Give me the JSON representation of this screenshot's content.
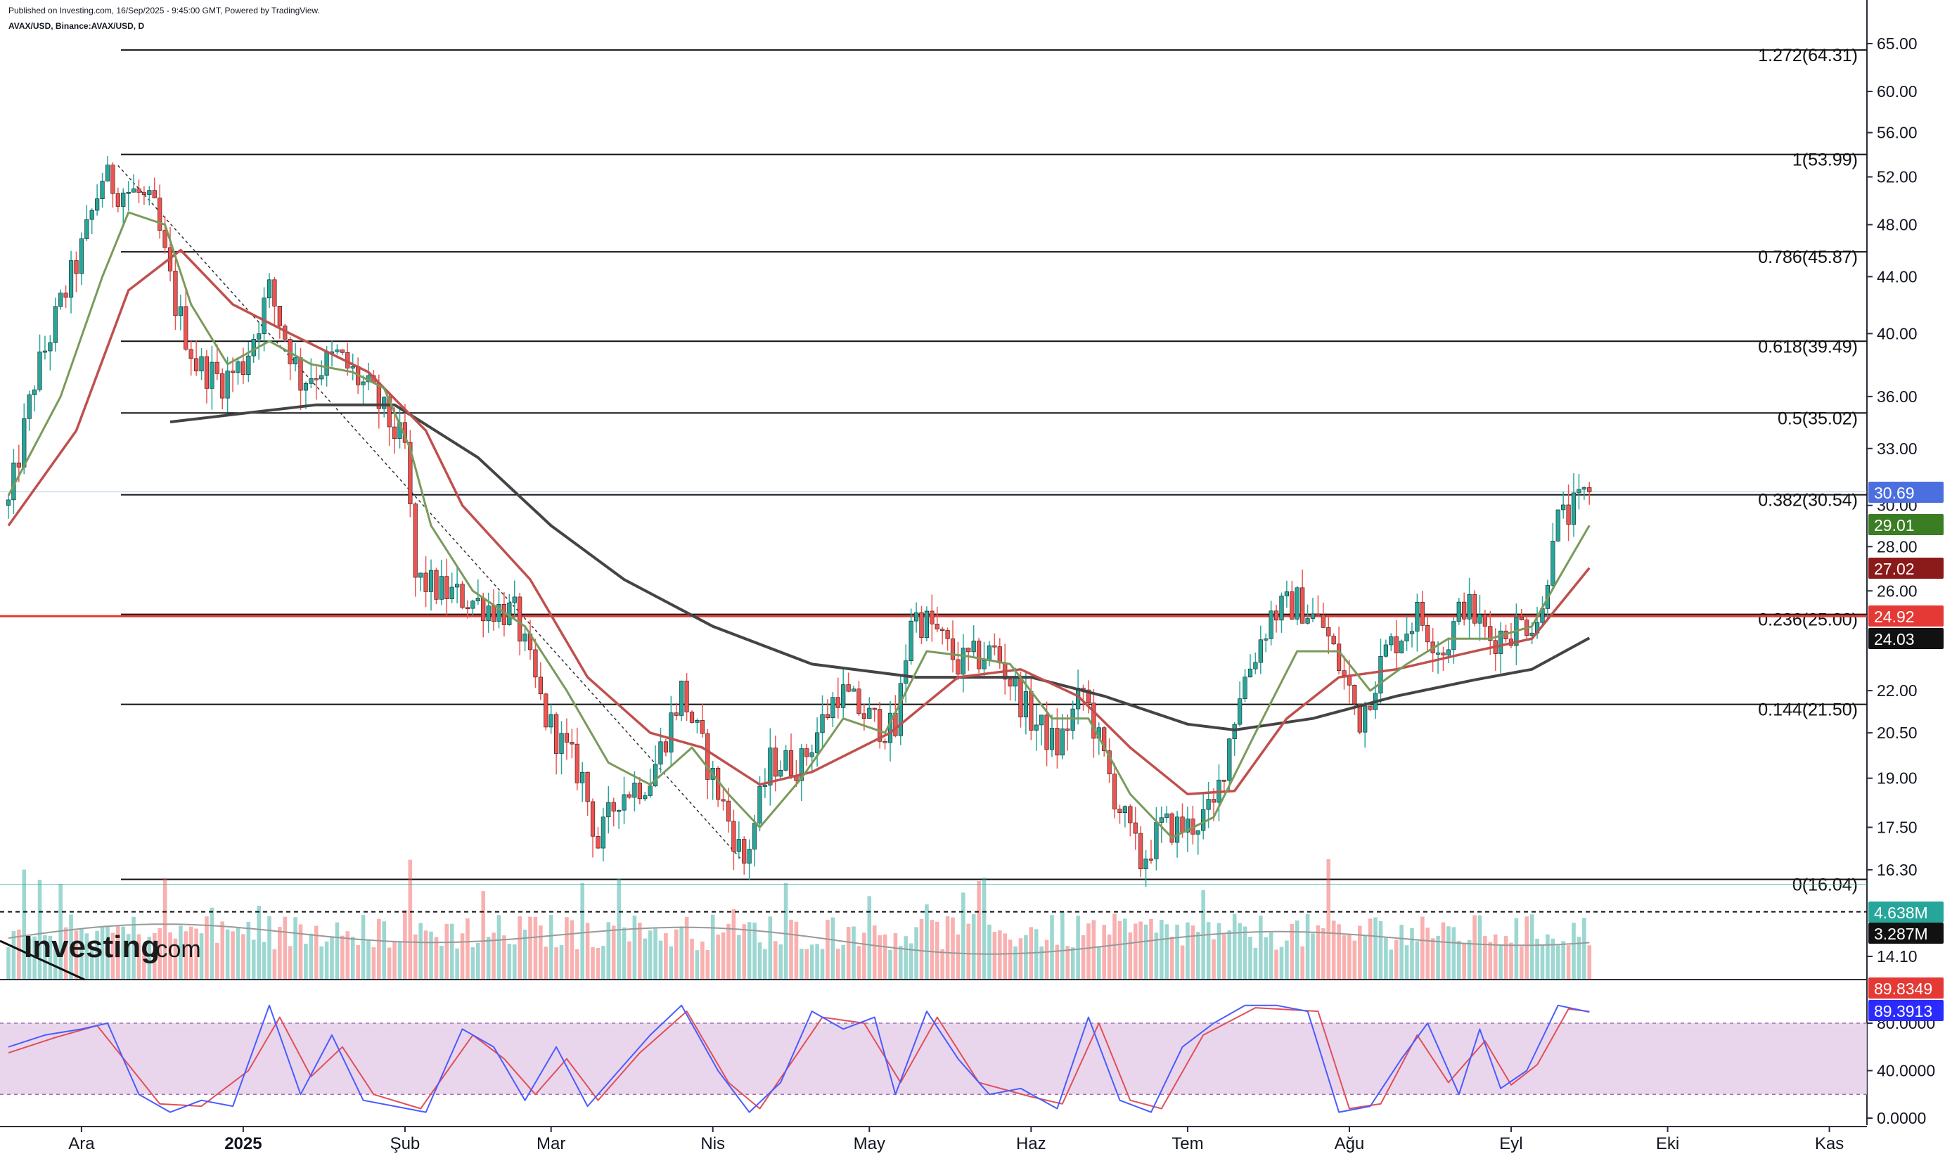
{
  "header": {
    "published": "Published on Investing.com, 16/Sep/2025 - 9:45:00 GMT, Powered by TradingView.",
    "symbol": "AVAX/USD, Binance:AVAX/USD, D"
  },
  "watermark": {
    "brand": "Investing",
    "suffix": ".com"
  },
  "colors": {
    "up": "#26a69a",
    "down": "#ef5350",
    "ma_fast": "#7a9a5c",
    "ma_mid": "#c0504d",
    "ma_slow": "#444444",
    "support": "#e53935",
    "stoch_k": "#4a5cff",
    "stoch_d": "#e0505a",
    "stoch_band": "#e1c8e6"
  },
  "chart_data": {
    "type": "candlestick",
    "price_scale": "log",
    "price_ticks": [
      "65.00",
      "60.00",
      "56.00",
      "52.00",
      "48.00",
      "44.00",
      "40.00",
      "36.00",
      "33.00",
      "30.00",
      "28.00",
      "26.00",
      "22.00",
      "20.50",
      "19.00",
      "17.50",
      "16.30",
      "14.10"
    ],
    "x_ticks": [
      "Ara",
      "2025",
      "Şub",
      "Mar",
      "Nis",
      "May",
      "Haz",
      "Tem",
      "Ağu",
      "Eyl",
      "Eki",
      "Kas"
    ],
    "fib_levels": [
      {
        "label": "1.272(64.31)",
        "value": 64.31
      },
      {
        "label": "1(53.99)",
        "value": 53.99
      },
      {
        "label": "0.786(45.87)",
        "value": 45.87
      },
      {
        "label": "0.618(39.49)",
        "value": 39.49
      },
      {
        "label": "0.5(35.02)",
        "value": 35.02
      },
      {
        "label": "0.382(30.54)",
        "value": 30.54
      },
      {
        "label": "0.236(25.00)",
        "value": 25.0
      },
      {
        "label": "0.144(21.50)",
        "value": 21.5
      },
      {
        "label": "0(16.04)",
        "value": 16.04
      }
    ],
    "support_level": 24.92,
    "price_tags": [
      {
        "label": "30.69",
        "value": 30.69,
        "color": "#4c6fe0"
      },
      {
        "label": "29.01",
        "value": 29.01,
        "color": "#3a7d22"
      },
      {
        "label": "27.02",
        "value": 27.02,
        "color": "#8b1a1a"
      },
      {
        "label": "24.92",
        "value": 24.92,
        "color": "#e53935"
      },
      {
        "label": "24.03",
        "value": 24.03,
        "color": "#111111"
      }
    ],
    "volume_tags": [
      {
        "label": "4.638M",
        "value": 4.638,
        "color": "#26a69a"
      },
      {
        "label": "3.287M",
        "value": 3.287,
        "color": "#111111"
      }
    ],
    "stoch_ticks": [
      "80.0000",
      "40.0000",
      "0.0000"
    ],
    "stoch_tags": [
      {
        "label": "89.8349",
        "value": 89.8349,
        "color": "#e53935"
      },
      {
        "label": "89.3913",
        "value": 89.3913,
        "color": "#2b2bff"
      }
    ],
    "stoch_band": [
      20,
      80
    ],
    "price_path": [
      {
        "date": "2024-11-17",
        "close": 30.0
      },
      {
        "date": "2024-11-22",
        "close": 37.0
      },
      {
        "date": "2024-11-27",
        "close": 42.0
      },
      {
        "date": "2024-12-01",
        "close": 46.0
      },
      {
        "date": "2024-12-05",
        "close": 52.0
      },
      {
        "date": "2024-12-08",
        "close": 51.0
      },
      {
        "date": "2024-12-12",
        "close": 50.5
      },
      {
        "date": "2024-12-15",
        "close": 49.0
      },
      {
        "date": "2024-12-19",
        "close": 42.0
      },
      {
        "date": "2024-12-23",
        "close": 38.0
      },
      {
        "date": "2024-12-28",
        "close": 37.0
      },
      {
        "date": "2025-01-01",
        "close": 38.0
      },
      {
        "date": "2025-01-06",
        "close": 43.0
      },
      {
        "date": "2025-01-12",
        "close": 37.0
      },
      {
        "date": "2025-01-19",
        "close": 38.5
      },
      {
        "date": "2025-01-26",
        "close": 36.0
      },
      {
        "date": "2025-02-01",
        "close": 33.0
      },
      {
        "date": "2025-02-03",
        "close": 26.5
      },
      {
        "date": "2025-02-08",
        "close": 26.0
      },
      {
        "date": "2025-02-15",
        "close": 25.5
      },
      {
        "date": "2025-02-22",
        "close": 25.0
      },
      {
        "date": "2025-02-28",
        "close": 21.0
      },
      {
        "date": "2025-03-07",
        "close": 19.0
      },
      {
        "date": "2025-03-10",
        "close": 17.0
      },
      {
        "date": "2025-03-14",
        "close": 18.5
      },
      {
        "date": "2025-03-20",
        "close": 19.0
      },
      {
        "date": "2025-03-26",
        "close": 22.0
      },
      {
        "date": "2025-04-01",
        "close": 19.0
      },
      {
        "date": "2025-04-07",
        "close": 16.5
      },
      {
        "date": "2025-04-12",
        "close": 19.5
      },
      {
        "date": "2025-04-18",
        "close": 19.5
      },
      {
        "date": "2025-04-25",
        "close": 22.0
      },
      {
        "date": "2025-05-01",
        "close": 21.0
      },
      {
        "date": "2025-05-06",
        "close": 20.5
      },
      {
        "date": "2025-05-09",
        "close": 25.0
      },
      {
        "date": "2025-05-13",
        "close": 24.5
      },
      {
        "date": "2025-05-18",
        "close": 23.0
      },
      {
        "date": "2025-05-25",
        "close": 23.5
      },
      {
        "date": "2025-06-01",
        "close": 21.0
      },
      {
        "date": "2025-06-06",
        "close": 20.0
      },
      {
        "date": "2025-06-11",
        "close": 22.0
      },
      {
        "date": "2025-06-17",
        "close": 18.5
      },
      {
        "date": "2025-06-22",
        "close": 16.5
      },
      {
        "date": "2025-06-26",
        "close": 17.5
      },
      {
        "date": "2025-07-01",
        "close": 17.5
      },
      {
        "date": "2025-07-06",
        "close": 18.0
      },
      {
        "date": "2025-07-11",
        "close": 22.0
      },
      {
        "date": "2025-07-17",
        "close": 25.0
      },
      {
        "date": "2025-07-22",
        "close": 25.5
      },
      {
        "date": "2025-07-27",
        "close": 24.5
      },
      {
        "date": "2025-08-01",
        "close": 22.0
      },
      {
        "date": "2025-08-03",
        "close": 21.0
      },
      {
        "date": "2025-08-08",
        "close": 23.5
      },
      {
        "date": "2025-08-14",
        "close": 25.0
      },
      {
        "date": "2025-08-19",
        "close": 23.5
      },
      {
        "date": "2025-08-23",
        "close": 25.5
      },
      {
        "date": "2025-08-28",
        "close": 24.0
      },
      {
        "date": "2025-09-02",
        "close": 24.5
      },
      {
        "date": "2025-09-07",
        "close": 25.0
      },
      {
        "date": "2025-09-09",
        "close": 29.0
      },
      {
        "date": "2025-09-12",
        "close": 29.5
      },
      {
        "date": "2025-09-16",
        "close": 30.69
      }
    ],
    "ma_fast_path": [
      {
        "date": "2024-11-17",
        "value": 30.5
      },
      {
        "date": "2024-11-27",
        "value": 36.0
      },
      {
        "date": "2024-12-05",
        "value": 44.0
      },
      {
        "date": "2024-12-10",
        "value": 49.0
      },
      {
        "date": "2024-12-17",
        "value": 48.0
      },
      {
        "date": "2024-12-22",
        "value": 42.0
      },
      {
        "date": "2024-12-29",
        "value": 38.0
      },
      {
        "date": "2025-01-06",
        "value": 39.5
      },
      {
        "date": "2025-01-14",
        "value": 38.0
      },
      {
        "date": "2025-01-22",
        "value": 37.5
      },
      {
        "date": "2025-01-28",
        "value": 36.5
      },
      {
        "date": "2025-02-02",
        "value": 33.0
      },
      {
        "date": "2025-02-06",
        "value": 29.0
      },
      {
        "date": "2025-02-14",
        "value": 26.0
      },
      {
        "date": "2025-02-24",
        "value": 24.5
      },
      {
        "date": "2025-03-04",
        "value": 22.0
      },
      {
        "date": "2025-03-12",
        "value": 19.5
      },
      {
        "date": "2025-03-20",
        "value": 18.8
      },
      {
        "date": "2025-03-28",
        "value": 20.0
      },
      {
        "date": "2025-04-04",
        "value": 18.5
      },
      {
        "date": "2025-04-10",
        "value": 17.5
      },
      {
        "date": "2025-04-18",
        "value": 19.0
      },
      {
        "date": "2025-04-26",
        "value": 21.0
      },
      {
        "date": "2025-05-04",
        "value": 20.5
      },
      {
        "date": "2025-05-12",
        "value": 23.5
      },
      {
        "date": "2025-05-20",
        "value": 23.3
      },
      {
        "date": "2025-05-28",
        "value": 23.0
      },
      {
        "date": "2025-06-05",
        "value": 21.0
      },
      {
        "date": "2025-06-12",
        "value": 21.0
      },
      {
        "date": "2025-06-20",
        "value": 18.5
      },
      {
        "date": "2025-06-28",
        "value": 17.2
      },
      {
        "date": "2025-07-06",
        "value": 17.8
      },
      {
        "date": "2025-07-14",
        "value": 20.5
      },
      {
        "date": "2025-07-22",
        "value": 23.5
      },
      {
        "date": "2025-07-30",
        "value": 23.5
      },
      {
        "date": "2025-08-05",
        "value": 22.0
      },
      {
        "date": "2025-08-12",
        "value": 23.0
      },
      {
        "date": "2025-08-20",
        "value": 24.0
      },
      {
        "date": "2025-08-28",
        "value": 24.0
      },
      {
        "date": "2025-09-05",
        "value": 24.5
      },
      {
        "date": "2025-09-10",
        "value": 26.5
      },
      {
        "date": "2025-09-16",
        "value": 29.01
      }
    ],
    "ma_mid_path": [
      {
        "date": "2024-11-17",
        "value": 29.0
      },
      {
        "date": "2024-11-30",
        "value": 34.0
      },
      {
        "date": "2024-12-10",
        "value": 43.0
      },
      {
        "date": "2024-12-20",
        "value": 46.0
      },
      {
        "date": "2024-12-30",
        "value": 42.0
      },
      {
        "date": "2025-01-10",
        "value": 40.0
      },
      {
        "date": "2025-01-25",
        "value": 37.5
      },
      {
        "date": "2025-02-05",
        "value": 34.0
      },
      {
        "date": "2025-02-12",
        "value": 30.0
      },
      {
        "date": "2025-02-25",
        "value": 26.5
      },
      {
        "date": "2025-03-08",
        "value": 22.5
      },
      {
        "date": "2025-03-20",
        "value": 20.5
      },
      {
        "date": "2025-03-30",
        "value": 20.0
      },
      {
        "date": "2025-04-10",
        "value": 18.8
      },
      {
        "date": "2025-04-20",
        "value": 19.2
      },
      {
        "date": "2025-05-05",
        "value": 20.5
      },
      {
        "date": "2025-05-18",
        "value": 22.5
      },
      {
        "date": "2025-05-30",
        "value": 22.8
      },
      {
        "date": "2025-06-10",
        "value": 21.8
      },
      {
        "date": "2025-06-20",
        "value": 20.0
      },
      {
        "date": "2025-07-01",
        "value": 18.5
      },
      {
        "date": "2025-07-10",
        "value": 18.6
      },
      {
        "date": "2025-07-20",
        "value": 21.0
      },
      {
        "date": "2025-07-30",
        "value": 22.5
      },
      {
        "date": "2025-08-10",
        "value": 22.8
      },
      {
        "date": "2025-08-25",
        "value": 23.5
      },
      {
        "date": "2025-09-05",
        "value": 24.0
      },
      {
        "date": "2025-09-16",
        "value": 27.02
      }
    ],
    "ma_slow_path": [
      {
        "date": "2024-12-18",
        "value": 34.5
      },
      {
        "date": "2025-01-01",
        "value": 35.0
      },
      {
        "date": "2025-01-15",
        "value": 35.5
      },
      {
        "date": "2025-01-30",
        "value": 35.5
      },
      {
        "date": "2025-02-15",
        "value": 32.5
      },
      {
        "date": "2025-03-01",
        "value": 29.0
      },
      {
        "date": "2025-03-15",
        "value": 26.5
      },
      {
        "date": "2025-04-01",
        "value": 24.5
      },
      {
        "date": "2025-04-20",
        "value": 23.0
      },
      {
        "date": "2025-05-10",
        "value": 22.5
      },
      {
        "date": "2025-06-01",
        "value": 22.5
      },
      {
        "date": "2025-06-15",
        "value": 21.8
      },
      {
        "date": "2025-07-01",
        "value": 20.8
      },
      {
        "date": "2025-07-10",
        "value": 20.6
      },
      {
        "date": "2025-07-25",
        "value": 21.0
      },
      {
        "date": "2025-08-10",
        "value": 21.8
      },
      {
        "date": "2025-08-25",
        "value": 22.4
      },
      {
        "date": "2025-09-05",
        "value": 22.8
      },
      {
        "date": "2025-09-16",
        "value": 24.03
      }
    ],
    "stoch_k_path": [
      {
        "date": "2024-11-17",
        "value": 60
      },
      {
        "date": "2024-11-24",
        "value": 70
      },
      {
        "date": "2024-12-01",
        "value": 75
      },
      {
        "date": "2024-12-06",
        "value": 80
      },
      {
        "date": "2024-12-12",
        "value": 20
      },
      {
        "date": "2024-12-18",
        "value": 5
      },
      {
        "date": "2024-12-24",
        "value": 15
      },
      {
        "date": "2024-12-30",
        "value": 10
      },
      {
        "date": "2025-01-06",
        "value": 95
      },
      {
        "date": "2025-01-12",
        "value": 20
      },
      {
        "date": "2025-01-18",
        "value": 70
      },
      {
        "date": "2025-01-24",
        "value": 15
      },
      {
        "date": "2025-01-30",
        "value": 10
      },
      {
        "date": "2025-02-05",
        "value": 5
      },
      {
        "date": "2025-02-12",
        "value": 75
      },
      {
        "date": "2025-02-18",
        "value": 60
      },
      {
        "date": "2025-02-24",
        "value": 15
      },
      {
        "date": "2025-03-02",
        "value": 60
      },
      {
        "date": "2025-03-08",
        "value": 10
      },
      {
        "date": "2025-03-14",
        "value": 40
      },
      {
        "date": "2025-03-20",
        "value": 70
      },
      {
        "date": "2025-03-26",
        "value": 95
      },
      {
        "date": "2025-04-02",
        "value": 40
      },
      {
        "date": "2025-04-08",
        "value": 5
      },
      {
        "date": "2025-04-14",
        "value": 30
      },
      {
        "date": "2025-04-20",
        "value": 90
      },
      {
        "date": "2025-04-26",
        "value": 75
      },
      {
        "date": "2025-05-02",
        "value": 85
      },
      {
        "date": "2025-05-06",
        "value": 20
      },
      {
        "date": "2025-05-12",
        "value": 90
      },
      {
        "date": "2025-05-18",
        "value": 50
      },
      {
        "date": "2025-05-24",
        "value": 20
      },
      {
        "date": "2025-05-30",
        "value": 25
      },
      {
        "date": "2025-06-06",
        "value": 8
      },
      {
        "date": "2025-06-12",
        "value": 85
      },
      {
        "date": "2025-06-18",
        "value": 15
      },
      {
        "date": "2025-06-24",
        "value": 5
      },
      {
        "date": "2025-06-30",
        "value": 60
      },
      {
        "date": "2025-07-06",
        "value": 80
      },
      {
        "date": "2025-07-12",
        "value": 95
      },
      {
        "date": "2025-07-18",
        "value": 95
      },
      {
        "date": "2025-07-24",
        "value": 90
      },
      {
        "date": "2025-07-30",
        "value": 5
      },
      {
        "date": "2025-08-05",
        "value": 10
      },
      {
        "date": "2025-08-11",
        "value": 50
      },
      {
        "date": "2025-08-16",
        "value": 80
      },
      {
        "date": "2025-08-22",
        "value": 20
      },
      {
        "date": "2025-08-26",
        "value": 75
      },
      {
        "date": "2025-08-30",
        "value": 25
      },
      {
        "date": "2025-09-04",
        "value": 40
      },
      {
        "date": "2025-09-10",
        "value": 95
      },
      {
        "date": "2025-09-16",
        "value": 89.3913
      }
    ],
    "stoch_d_path": [
      {
        "date": "2024-11-17",
        "value": 55
      },
      {
        "date": "2024-11-26",
        "value": 68
      },
      {
        "date": "2024-12-04",
        "value": 78
      },
      {
        "date": "2024-12-10",
        "value": 45
      },
      {
        "date": "2024-12-16",
        "value": 12
      },
      {
        "date": "2024-12-24",
        "value": 10
      },
      {
        "date": "2025-01-02",
        "value": 40
      },
      {
        "date": "2025-01-08",
        "value": 85
      },
      {
        "date": "2025-01-14",
        "value": 35
      },
      {
        "date": "2025-01-20",
        "value": 60
      },
      {
        "date": "2025-01-26",
        "value": 20
      },
      {
        "date": "2025-02-04",
        "value": 8
      },
      {
        "date": "2025-02-14",
        "value": 70
      },
      {
        "date": "2025-02-20",
        "value": 50
      },
      {
        "date": "2025-02-26",
        "value": 20
      },
      {
        "date": "2025-03-04",
        "value": 50
      },
      {
        "date": "2025-03-10",
        "value": 15
      },
      {
        "date": "2025-03-18",
        "value": 55
      },
      {
        "date": "2025-03-27",
        "value": 90
      },
      {
        "date": "2025-04-04",
        "value": 30
      },
      {
        "date": "2025-04-10",
        "value": 8
      },
      {
        "date": "2025-04-22",
        "value": 85
      },
      {
        "date": "2025-04-30",
        "value": 80
      },
      {
        "date": "2025-05-07",
        "value": 30
      },
      {
        "date": "2025-05-14",
        "value": 85
      },
      {
        "date": "2025-05-22",
        "value": 30
      },
      {
        "date": "2025-06-01",
        "value": 18
      },
      {
        "date": "2025-06-07",
        "value": 12
      },
      {
        "date": "2025-06-14",
        "value": 80
      },
      {
        "date": "2025-06-20",
        "value": 15
      },
      {
        "date": "2025-06-26",
        "value": 8
      },
      {
        "date": "2025-07-04",
        "value": 70
      },
      {
        "date": "2025-07-14",
        "value": 93
      },
      {
        "date": "2025-07-26",
        "value": 90
      },
      {
        "date": "2025-08-01",
        "value": 8
      },
      {
        "date": "2025-08-07",
        "value": 12
      },
      {
        "date": "2025-08-14",
        "value": 70
      },
      {
        "date": "2025-08-20",
        "value": 30
      },
      {
        "date": "2025-08-27",
        "value": 65
      },
      {
        "date": "2025-09-01",
        "value": 28
      },
      {
        "date": "2025-09-06",
        "value": 45
      },
      {
        "date": "2025-09-12",
        "value": 92
      },
      {
        "date": "2025-09-16",
        "value": 89.8349
      }
    ]
  }
}
